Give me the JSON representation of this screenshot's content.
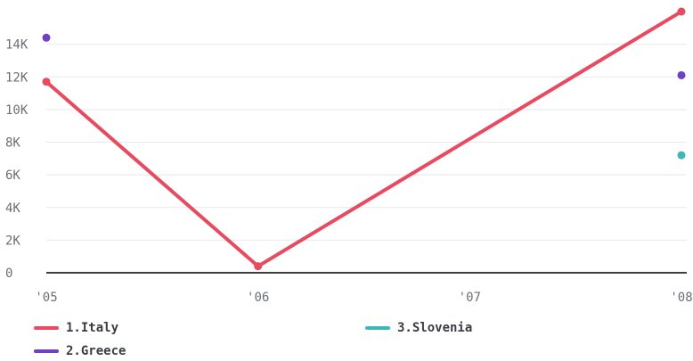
{
  "chart_data": {
    "type": "line",
    "x": [
      "'05",
      "'06",
      "'07",
      "'08"
    ],
    "y_ticks": [
      "0",
      "2K",
      "4K",
      "6K",
      "8K",
      "10K",
      "12K",
      "14K"
    ],
    "ylim": [
      0,
      16000
    ],
    "grid": true,
    "legend_position": "bottom",
    "series": [
      {
        "name": "1.Italy",
        "color": "#e84a5f",
        "points": [
          {
            "x": "'05",
            "y": 11700
          },
          {
            "x": "'06",
            "y": 400
          },
          {
            "x": "'08",
            "y": 16000
          }
        ]
      },
      {
        "name": "2.Greece",
        "color": "#6f3fc4",
        "points": [
          {
            "x": "'05",
            "y": 14400
          },
          {
            "x": "'08",
            "y": 12100
          }
        ]
      },
      {
        "name": "3.Slovenia",
        "color": "#3bb8b5",
        "points": [
          {
            "x": "'08",
            "y": 7200
          }
        ]
      }
    ]
  },
  "legend": {
    "items": [
      {
        "label": "1.Italy",
        "color": "#e84a5f"
      },
      {
        "label": "2.Greece",
        "color": "#6f3fc4"
      },
      {
        "label": "3.Slovenia",
        "color": "#3bb8b5"
      }
    ]
  }
}
